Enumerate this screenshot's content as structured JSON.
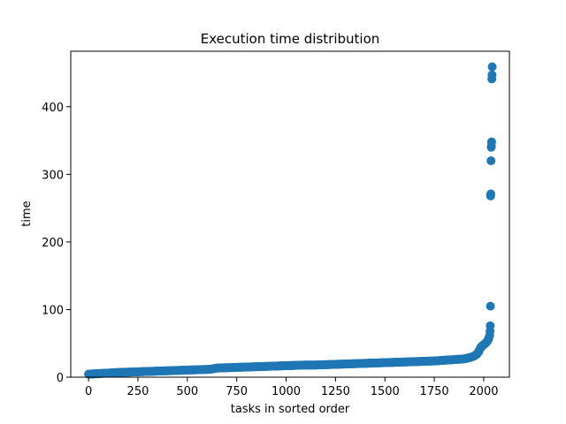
{
  "chart_data": {
    "type": "scatter",
    "title": "Execution time distribution",
    "xlabel": "tasks in sorted order",
    "ylabel": "time",
    "xlim": [
      -90,
      2130
    ],
    "ylim": [
      0,
      482
    ],
    "xticks": [
      0,
      250,
      500,
      750,
      1000,
      1250,
      1500,
      1750,
      2000
    ],
    "yticks": [
      0,
      100,
      200,
      300,
      400
    ],
    "grid": false,
    "legend": "none",
    "color": "#1f77b4",
    "points_sampled": [
      [
        0,
        4.5
      ],
      [
        30,
        5
      ],
      [
        60,
        5.5
      ],
      [
        100,
        6
      ],
      [
        150,
        7
      ],
      [
        200,
        7.5
      ],
      [
        250,
        8
      ],
      [
        300,
        8.5
      ],
      [
        350,
        9
      ],
      [
        400,
        9.5
      ],
      [
        450,
        10
      ],
      [
        500,
        10.5
      ],
      [
        550,
        11
      ],
      [
        600,
        11.5
      ],
      [
        625,
        12
      ],
      [
        650,
        13.5
      ],
      [
        700,
        14
      ],
      [
        750,
        14.5
      ],
      [
        800,
        15
      ],
      [
        850,
        15.5
      ],
      [
        900,
        16
      ],
      [
        950,
        16.5
      ],
      [
        1000,
        17
      ],
      [
        1050,
        17.5
      ],
      [
        1100,
        18
      ],
      [
        1150,
        18
      ],
      [
        1200,
        18.5
      ],
      [
        1250,
        19
      ],
      [
        1300,
        19.5
      ],
      [
        1350,
        20
      ],
      [
        1400,
        20.5
      ],
      [
        1450,
        21
      ],
      [
        1500,
        21.5
      ],
      [
        1550,
        22
      ],
      [
        1600,
        22.5
      ],
      [
        1650,
        23
      ],
      [
        1700,
        23.5
      ],
      [
        1750,
        24
      ],
      [
        1800,
        25
      ],
      [
        1850,
        26
      ],
      [
        1900,
        27
      ],
      [
        1930,
        29
      ],
      [
        1950,
        31
      ],
      [
        1965,
        34
      ],
      [
        1975,
        38
      ],
      [
        1985,
        44
      ],
      [
        1995,
        47
      ],
      [
        2005,
        49
      ],
      [
        2012,
        51
      ],
      [
        2018,
        53
      ],
      [
        2022,
        55
      ],
      [
        2025,
        57
      ],
      [
        2028,
        60
      ],
      [
        2030,
        62
      ],
      [
        2032,
        68
      ],
      [
        2033,
        76
      ],
      [
        2034,
        105
      ],
      [
        2035,
        268
      ],
      [
        2036,
        271
      ],
      [
        2037,
        320
      ],
      [
        2038,
        340
      ],
      [
        2039,
        342
      ],
      [
        2040,
        348
      ],
      [
        2041,
        441
      ],
      [
        2042,
        447
      ],
      [
        2043,
        459
      ]
    ]
  }
}
